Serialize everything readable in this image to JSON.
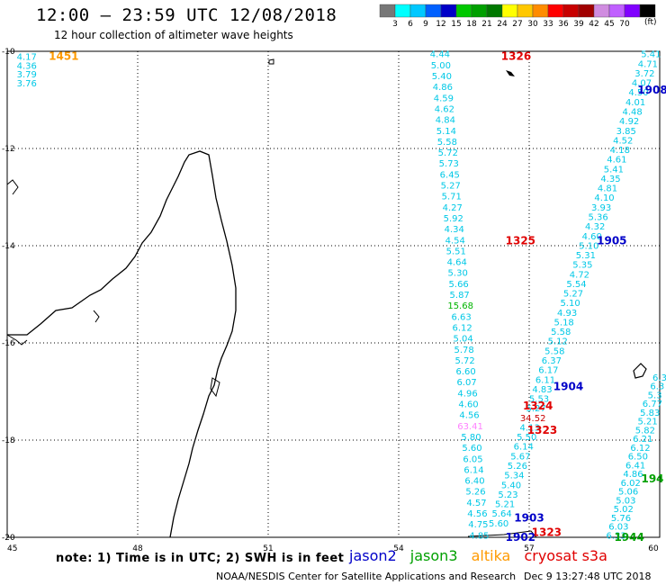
{
  "header": {
    "title": "12:00 – 23:59 UTC 12/08/2018",
    "subtitle": "12 hour collection of altimeter wave heights",
    "unit": "(ft)"
  },
  "colorbar": {
    "labels": [
      "3",
      "6",
      "9",
      "12",
      "15",
      "18",
      "21",
      "24",
      "27",
      "30",
      "33",
      "36",
      "39",
      "42",
      "45",
      "70"
    ],
    "colors": [
      "#777777",
      "#00ffff",
      "#00c8ff",
      "#0060ff",
      "#0000c8",
      "#00c800",
      "#00a000",
      "#007800",
      "#ffff00",
      "#ffc800",
      "#ff8c00",
      "#ff0000",
      "#c80000",
      "#a00000",
      "#d08ce0",
      "#c060ff",
      "#8000ff",
      "#000000"
    ]
  },
  "axes": {
    "lat_labels": [
      "10",
      "12",
      "14",
      "16",
      "18",
      "20"
    ],
    "lon_labels": [
      "45",
      "48",
      "51",
      "54",
      "57",
      "60"
    ]
  },
  "colors": {
    "jason2": "#0000c8",
    "jason3": "#00a000",
    "altika": "#ff9a00",
    "cryosat": "#e00000",
    "wave_low": "#00c8e6",
    "wave_green": "#00b400",
    "wave_pink": "#ff80ff"
  },
  "track_times": [
    {
      "label": "1326",
      "lat": 10.1,
      "lon": 56.7,
      "sat": "cryosat"
    },
    {
      "label": "1325",
      "lat": 13.9,
      "lon": 56.8,
      "sat": "cryosat"
    },
    {
      "label": "1324",
      "lat": 17.3,
      "lon": 57.2,
      "sat": "cryosat"
    },
    {
      "label": "1323",
      "lat": 17.8,
      "lon": 57.3,
      "sat": "cryosat"
    },
    {
      "label": "1323",
      "lat": 19.9,
      "lon": 57.4,
      "sat": "cryosat"
    },
    {
      "label": "1451",
      "lat": 10.1,
      "lon": 46.3,
      "sat": "altika"
    },
    {
      "label": "1908",
      "lat": 10.8,
      "lon": 59.9,
      "sat": "jason2"
    },
    {
      "label": "1905",
      "lat": 13.9,
      "lon": 58.9,
      "sat": "jason2"
    },
    {
      "label": "1904",
      "lat": 16.9,
      "lon": 57.9,
      "sat": "jason2"
    },
    {
      "label": "1903",
      "lat": 19.6,
      "lon": 57.0,
      "sat": "jason2"
    },
    {
      "label": "1902",
      "lat": 20.0,
      "lon": 56.8,
      "sat": "jason2"
    },
    {
      "label": "1944",
      "lat": 20.0,
      "lon": 59.3,
      "sat": "jason3"
    },
    {
      "label": "194",
      "lat": 18.8,
      "lon": 59.9,
      "sat": "jason3"
    }
  ],
  "track_far_left": [
    "4.17",
    "4.36",
    "3.79",
    "3.76"
  ],
  "track_cryosat": [
    "4.44",
    "5.00",
    "5.40",
    "4.86",
    "4.59",
    "4.62",
    "4.84",
    "5.14",
    "5.58",
    "5.72",
    "5.73",
    "6.45",
    "5.27",
    "5.71",
    "4.27",
    "5.92",
    "4.34",
    "4.54",
    "5.51",
    "4.64",
    "5.30",
    "5.66",
    "5.87",
    "15.68",
    "6.63",
    "6.12",
    "5.04",
    "5.78",
    "5.72",
    "6.60",
    "6.07",
    "4.96",
    "4.60",
    "4.56",
    "63.41",
    "5.80",
    "5.60",
    "6.05",
    "6.14",
    "6.40",
    "5.26",
    "4.57",
    "4.56",
    "4.75",
    "4.85"
  ],
  "track_jason2": [
    "5.41",
    "4.71",
    "3.72",
    "4.07",
    "4.50",
    "4.01",
    "4.48",
    "4.92",
    "3.85",
    "4.52",
    "4.18",
    "4.61",
    "5.41",
    "4.35",
    "4.81",
    "4.10",
    "3.93",
    "5.36",
    "4.32",
    "4.60",
    "5.10",
    "5.31",
    "5.35",
    "4.72",
    "5.54",
    "5.27",
    "5.10",
    "4.93",
    "5.18",
    "5.58",
    "5.12",
    "5.58",
    "6.37",
    "6.17",
    "6.11",
    "4.83",
    "5.53",
    "5.27",
    "34.52",
    "4.13",
    "5.50",
    "6.14",
    "5.67",
    "5.26",
    "5.34",
    "5.40",
    "5.23",
    "5.21",
    "5.64",
    "5.60"
  ],
  "track_jason3": [
    "6.3",
    "6.3",
    "5.3",
    "6.77",
    "5.83",
    "5.21",
    "5.82",
    "6.21",
    "6.12",
    "6.50",
    "6.41",
    "4.86",
    "6.02",
    "5.06",
    "5.03",
    "5.02",
    "5.76",
    "6.03",
    "6.33"
  ],
  "note": "note: 1) Time is in UTC; 2) SWH is in feet",
  "legend": [
    {
      "label": "jason2",
      "sat": "jason2"
    },
    {
      "label": "jason3",
      "sat": "jason3"
    },
    {
      "label": "altika",
      "sat": "altika"
    },
    {
      "label": "cryosat s3a",
      "sat": "cryosat"
    }
  ],
  "credit": "NOAA/NESDIS Center for Satellite Applications and Research",
  "timestamp": "Dec  9 13:27:48 UTC 2018"
}
